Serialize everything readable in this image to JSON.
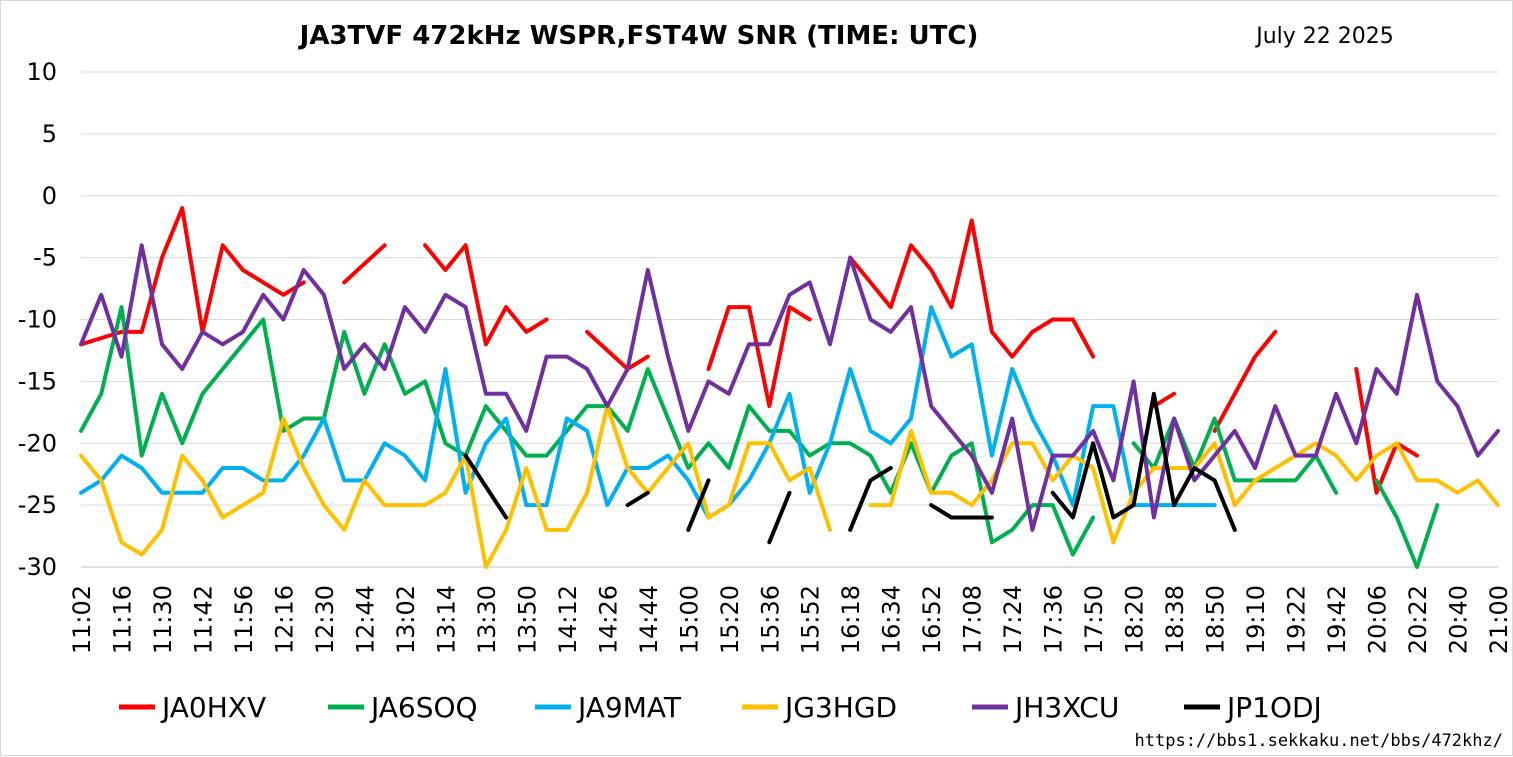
{
  "chart_data": {
    "type": "line",
    "title": "JA3TVF 472kHz WSPR,FST4W SNR (TIME: UTC)",
    "date": "July 22 2025",
    "url": "https://bbs1.sekkaku.net/bbs/472khz/",
    "ylim": [
      -30,
      10
    ],
    "yticks": [
      10,
      5,
      0,
      -5,
      -10,
      -15,
      -20,
      -25,
      -30
    ],
    "grid": true,
    "legend_position": "bottom",
    "x": [
      "11:02",
      "11:10",
      "11:16",
      "11:24",
      "11:30",
      "11:36",
      "11:42",
      "11:50",
      "11:56",
      "12:04",
      "12:16",
      "12:24",
      "12:30",
      "12:38",
      "12:44",
      "12:52",
      "13:02",
      "13:08",
      "13:14",
      "13:22",
      "13:30",
      "13:40",
      "13:50",
      "14:04",
      "14:12",
      "14:20",
      "14:26",
      "14:36",
      "14:44",
      "14:52",
      "15:00",
      "15:10",
      "15:20",
      "15:28",
      "15:36",
      "15:44",
      "15:52",
      "16:10",
      "16:18",
      "16:26",
      "16:34",
      "16:44",
      "16:52",
      "17:00",
      "17:08",
      "17:16",
      "17:24",
      "17:30",
      "17:36",
      "17:44",
      "17:50",
      "18:00",
      "18:20",
      "18:30",
      "18:38",
      "18:44",
      "18:50",
      "19:00",
      "19:10",
      "19:16",
      "19:22",
      "19:36",
      "19:42",
      "19:54",
      "20:06",
      "20:14",
      "20:22",
      "20:30",
      "20:40",
      "20:52",
      "21:00"
    ],
    "xtick_labels": [
      "11:02",
      "11:16",
      "11:30",
      "11:42",
      "11:56",
      "12:16",
      "12:30",
      "12:44",
      "13:02",
      "13:14",
      "13:30",
      "13:50",
      "14:12",
      "14:26",
      "14:44",
      "15:00",
      "15:20",
      "15:36",
      "15:52",
      "16:18",
      "16:34",
      "16:52",
      "17:08",
      "17:24",
      "17:36",
      "17:50",
      "18:20",
      "18:38",
      "18:50",
      "19:10",
      "19:22",
      "19:42",
      "20:06",
      "20:22",
      "20:40",
      "21:00"
    ],
    "series": [
      {
        "name": "JA0HXV",
        "color": "#ff0000",
        "values": [
          -12,
          -11.5,
          -11,
          -11,
          -5,
          -1,
          -11,
          -4,
          -6,
          -7,
          -8,
          -7,
          null,
          -7,
          -5.5,
          -4,
          null,
          -4,
          -6,
          -4,
          -12,
          -9,
          -11,
          -10,
          null,
          -11,
          -12.5,
          -14,
          -13,
          null,
          null,
          -14,
          -9,
          -9,
          -17,
          -9,
          -10,
          null,
          -5,
          -7,
          -9,
          -4,
          -6,
          -9,
          -2,
          -11,
          -13,
          -11,
          -10,
          -10,
          -13,
          null,
          null,
          -17,
          -16,
          null,
          -19,
          -16,
          -13,
          -11,
          null,
          null,
          null,
          -14,
          -24,
          -20,
          -21,
          null,
          null,
          null,
          null
        ]
      },
      {
        "name": "JA6SOQ",
        "color": "#00b050",
        "values": [
          -19,
          -16,
          -9,
          -21,
          -16,
          -20,
          -16,
          -14,
          -12,
          -10,
          -19,
          -18,
          -18,
          -11,
          -16,
          -12,
          -16,
          -15,
          -20,
          -21,
          -17,
          -19,
          -21,
          -21,
          -19,
          -17,
          -17,
          -19,
          -14,
          -18,
          -22,
          -20,
          -22,
          -17,
          -19,
          -19,
          -21,
          -20,
          -20,
          -21,
          -24,
          -20,
          -24,
          -21,
          -20,
          -28,
          -27,
          -25,
          -25,
          -29,
          -26,
          null,
          -20,
          -22,
          -18,
          -22,
          -18,
          -23,
          -23,
          -23,
          -23,
          -21,
          -24,
          null,
          -23,
          -26,
          -30,
          -25,
          null,
          null,
          null
        ]
      },
      {
        "name": "JA9MAT",
        "color": "#00b0f0",
        "values": [
          -24,
          -23,
          -21,
          -22,
          -24,
          -24,
          -24,
          -22,
          -22,
          -23,
          -23,
          -21,
          -18,
          -23,
          -23,
          -20,
          -21,
          -23,
          -14,
          -24,
          -20,
          -18,
          -25,
          -25,
          -18,
          -19,
          -25,
          -22,
          -22,
          -21,
          -23,
          -26,
          -25,
          -23,
          -20,
          -16,
          -24,
          -20,
          -14,
          -19,
          -20,
          -18,
          -9,
          -13,
          -12,
          -21,
          -14,
          -18,
          -21,
          -25,
          -17,
          -17,
          -25,
          -25,
          -25,
          -25,
          -25,
          null,
          null,
          null,
          null,
          null,
          null,
          null,
          null,
          null,
          null,
          null,
          null,
          null,
          null
        ]
      },
      {
        "name": "JG3HGD",
        "color": "#ffc000",
        "values": [
          -21,
          -23,
          -28,
          -29,
          -27,
          -21,
          -23,
          -26,
          -25,
          -24,
          -18,
          -22,
          -25,
          -27,
          -23,
          -25,
          -25,
          -25,
          -24,
          -21,
          -30,
          -27,
          -22,
          -27,
          -27,
          -24,
          -17,
          -22,
          -24,
          -22,
          -20,
          -26,
          -25,
          -20,
          -20,
          -23,
          -22,
          -27,
          null,
          -25,
          -25,
          -19,
          -24,
          -24,
          -25,
          -23,
          -20,
          -20,
          -23,
          -21,
          -22,
          -28,
          -24,
          -22,
          -22,
          -22,
          -20,
          -25,
          -23,
          -22,
          -21,
          -20,
          -21,
          -23,
          -21,
          -20,
          -23,
          -23,
          -24,
          -23,
          -25
        ]
      },
      {
        "name": "JH3XCU",
        "color": "#7030a0",
        "values": [
          -12,
          -8,
          -13,
          -4,
          -12,
          -14,
          -11,
          -12,
          -11,
          -8,
          -10,
          -6,
          -8,
          -14,
          -12,
          -14,
          -9,
          -11,
          -8,
          -9,
          -16,
          -16,
          -19,
          -13,
          -13,
          -14,
          -17,
          -14,
          -6,
          -13,
          -19,
          -15,
          -16,
          -12,
          -12,
          -8,
          -7,
          -12,
          -5,
          -10,
          -11,
          -9,
          -17,
          -19,
          -21,
          -24,
          -18,
          -27,
          -21,
          -21,
          -19,
          -23,
          -15,
          -26,
          -18,
          -23,
          -21,
          -19,
          -22,
          -17,
          -21,
          -21,
          -16,
          -20,
          -14,
          -16,
          -8,
          -15,
          -17,
          -21,
          -19
        ]
      },
      {
        "name": "JP1ODJ",
        "color": "#000000",
        "values": [
          null,
          null,
          null,
          null,
          null,
          null,
          null,
          null,
          null,
          null,
          null,
          null,
          null,
          null,
          null,
          null,
          null,
          null,
          null,
          -21,
          -23.5,
          -26,
          null,
          null,
          null,
          null,
          null,
          -25,
          -24,
          null,
          -27,
          -23,
          null,
          null,
          -28,
          -24,
          null,
          null,
          -27,
          -23,
          -22,
          null,
          -25,
          -26,
          -26,
          -26,
          null,
          null,
          -24,
          -26,
          -20,
          -26,
          -25,
          -16,
          -25,
          -22,
          -23,
          -27,
          null,
          null,
          null,
          null,
          null,
          null,
          null,
          null,
          null,
          null,
          null,
          null,
          null
        ]
      }
    ]
  }
}
